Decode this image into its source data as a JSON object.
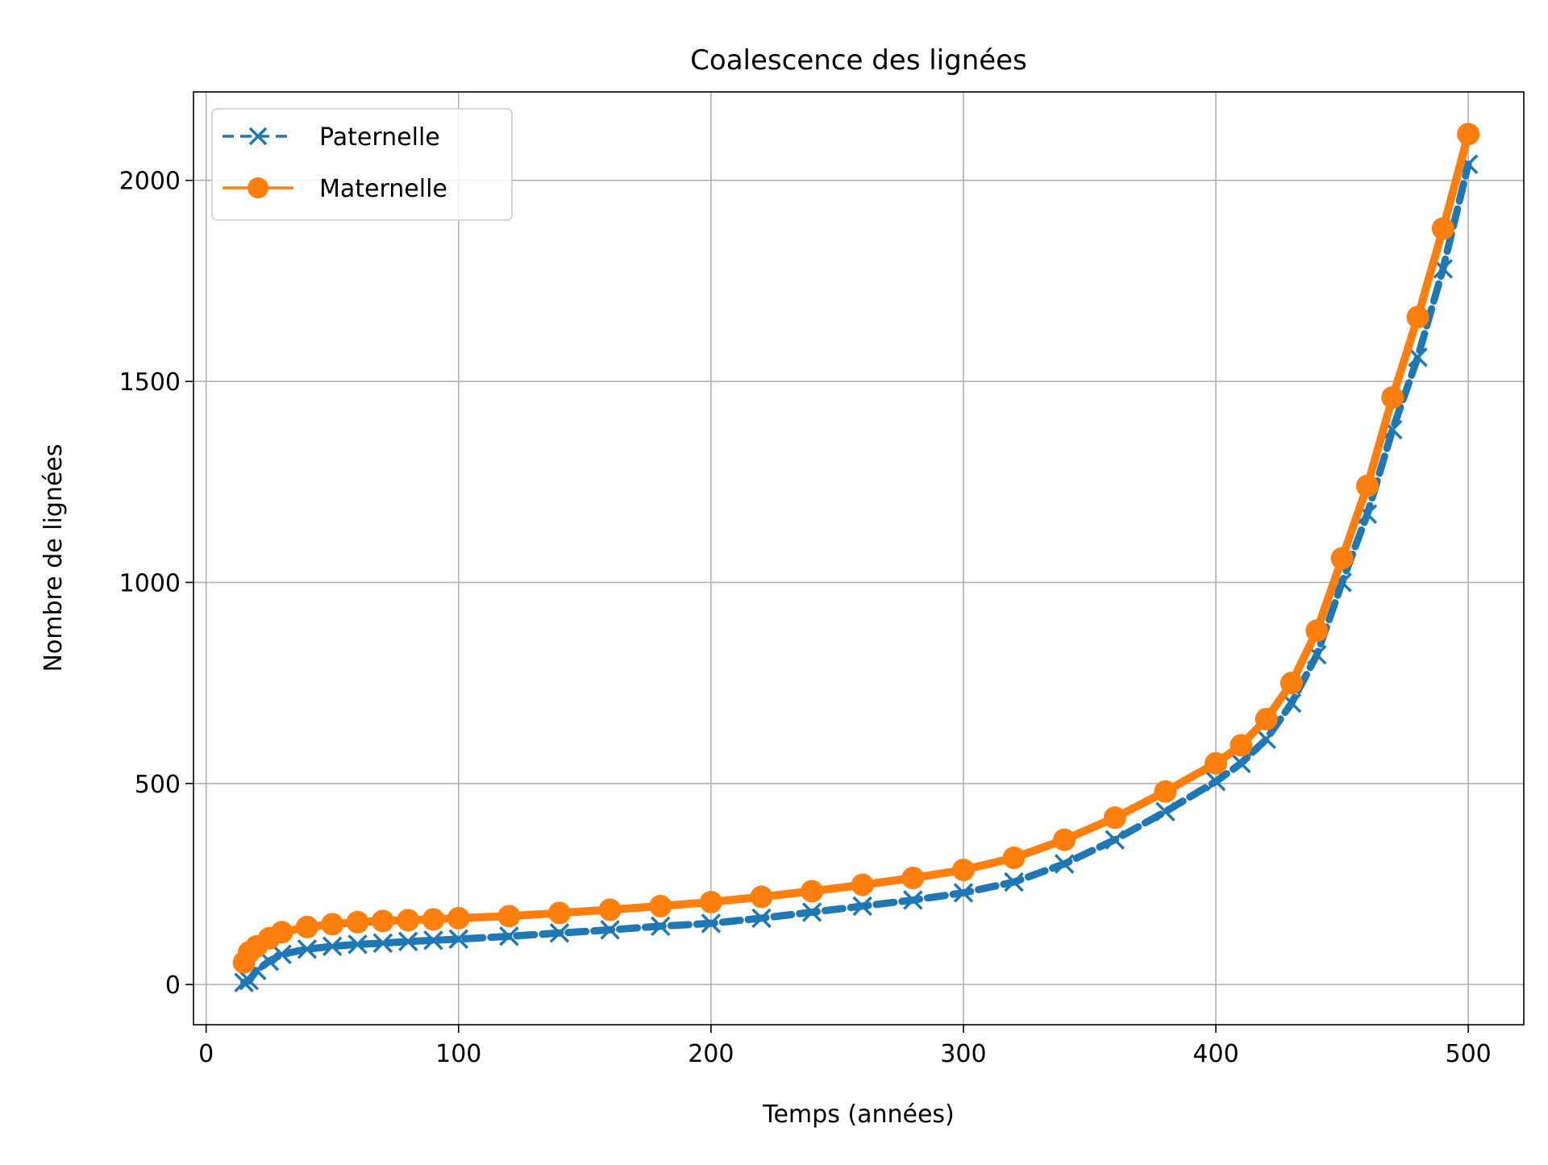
{
  "chart_data": {
    "type": "line",
    "title": "Coalescence des lignées",
    "xlabel": "Temps (années)",
    "ylabel": "Nombre de lignées",
    "xlim": [
      -5,
      522
    ],
    "ylim": [
      -100,
      2220
    ],
    "xticks": [
      0,
      100,
      200,
      300,
      400,
      500
    ],
    "yticks": [
      0,
      500,
      1000,
      1500,
      2000
    ],
    "grid": true,
    "legend_position": "top-left",
    "series": [
      {
        "name": "Paternelle",
        "color": "#1f77b4",
        "linestyle": "dashed",
        "marker": "x",
        "x": [
          15,
          17,
          20,
          25,
          30,
          40,
          50,
          60,
          70,
          80,
          90,
          100,
          120,
          140,
          160,
          180,
          200,
          220,
          240,
          260,
          280,
          300,
          320,
          340,
          360,
          380,
          400,
          410,
          420,
          430,
          440,
          450,
          460,
          470,
          480,
          490,
          500
        ],
        "y": [
          5,
          10,
          35,
          58,
          75,
          88,
          95,
          100,
          103,
          107,
          110,
          113,
          120,
          128,
          136,
          145,
          152,
          165,
          180,
          195,
          210,
          228,
          255,
          300,
          360,
          430,
          505,
          550,
          610,
          700,
          820,
          1000,
          1170,
          1380,
          1560,
          1780,
          2040
        ]
      },
      {
        "name": "Maternelle",
        "color": "#ff7f0e",
        "linestyle": "solid",
        "marker": "o",
        "x": [
          15,
          17,
          20,
          25,
          30,
          40,
          50,
          60,
          70,
          80,
          90,
          100,
          120,
          140,
          160,
          180,
          200,
          220,
          240,
          260,
          280,
          300,
          320,
          340,
          360,
          380,
          400,
          410,
          420,
          430,
          440,
          450,
          460,
          470,
          480,
          490,
          500
        ],
        "y": [
          55,
          80,
          95,
          115,
          130,
          143,
          150,
          155,
          158,
          160,
          162,
          165,
          170,
          178,
          186,
          195,
          205,
          218,
          232,
          248,
          265,
          285,
          315,
          360,
          415,
          480,
          550,
          595,
          660,
          750,
          880,
          1060,
          1240,
          1460,
          1660,
          1880,
          2115
        ]
      }
    ]
  }
}
